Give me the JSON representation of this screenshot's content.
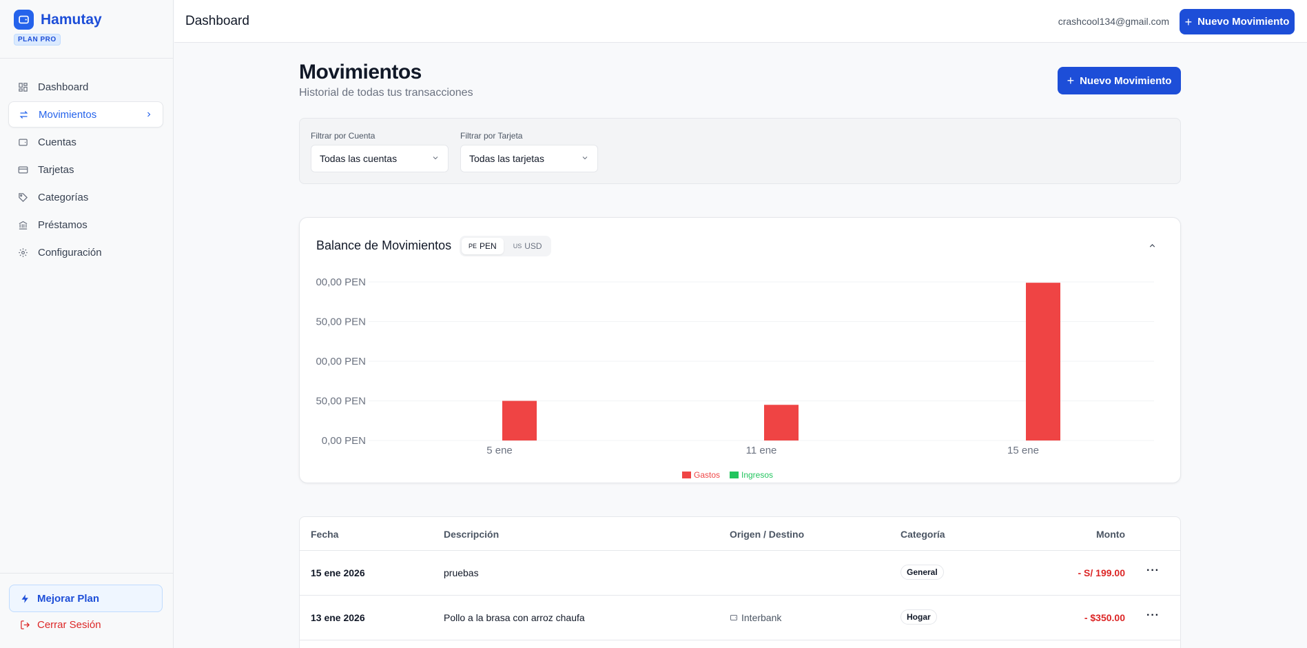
{
  "brand": {
    "name": "Hamutay",
    "plan": "PLAN PRO"
  },
  "sidebar": {
    "items": [
      {
        "label": "Dashboard",
        "icon": "grid-icon"
      },
      {
        "label": "Movimientos",
        "icon": "arrows-icon",
        "active": true
      },
      {
        "label": "Cuentas",
        "icon": "wallet-icon"
      },
      {
        "label": "Tarjetas",
        "icon": "card-icon"
      },
      {
        "label": "Categorías",
        "icon": "tag-icon"
      },
      {
        "label": "Préstamos",
        "icon": "bank-icon"
      },
      {
        "label": "Configuración",
        "icon": "gear-icon"
      }
    ],
    "upgrade_label": "Mejorar Plan",
    "logout_label": "Cerrar Sesión"
  },
  "topbar": {
    "title": "Dashboard",
    "email": "crashcool134@gmail.com",
    "new_button": "Nuevo Movimiento"
  },
  "main": {
    "title": "Movimientos",
    "subtitle": "Historial de todas tus transacciones",
    "new_button": "Nuevo Movimiento"
  },
  "filters": {
    "account_label": "Filtrar por Cuenta",
    "account_value": "Todas las cuentas",
    "card_label": "Filtrar por Tarjeta",
    "card_value": "Todas las tarjetas"
  },
  "chart_card": {
    "title": "Balance de Movimientos",
    "currencies": [
      {
        "flag": "PE",
        "code": "PEN",
        "active": true
      },
      {
        "flag": "US",
        "code": "USD",
        "active": false
      }
    ]
  },
  "chart_data": {
    "type": "bar",
    "categories": [
      "5 ene",
      "11 ene",
      "15 ene"
    ],
    "series": [
      {
        "name": "Gastos",
        "color": "#ef4444",
        "values": [
          50,
          45,
          199
        ]
      },
      {
        "name": "Ingresos",
        "color": "#22c55e",
        "values": [
          0,
          0,
          0
        ]
      }
    ],
    "yticks": [
      "0,00 PEN",
      "50,00 PEN",
      "00,00 PEN",
      "50,00 PEN",
      "00,00 PEN"
    ],
    "ylim": [
      0,
      200
    ],
    "legend": "bottom-center"
  },
  "table": {
    "headers": {
      "date": "Fecha",
      "description": "Descripción",
      "origin": "Origen / Destino",
      "category": "Categoría",
      "amount": "Monto"
    },
    "rows": [
      {
        "date": "15 ene 2026",
        "description": "pruebas",
        "origin": "",
        "category": "General",
        "amount": "- S/ 199.00"
      },
      {
        "date": "13 ene 2026",
        "description": "Pollo a la brasa con arroz chaufa",
        "origin": "Interbank",
        "category": "Hogar",
        "amount": "- $350.00"
      }
    ]
  }
}
